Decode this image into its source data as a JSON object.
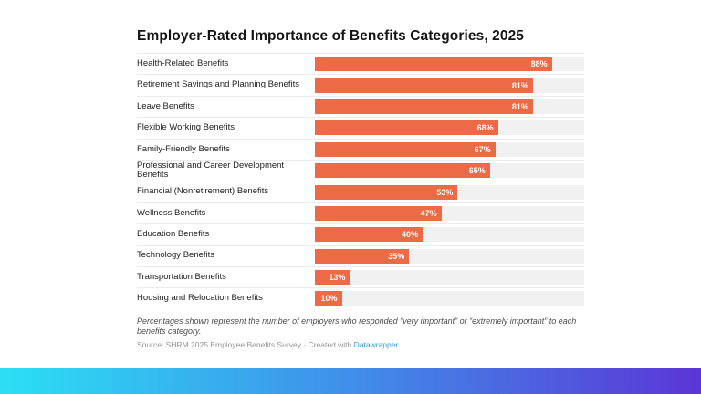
{
  "page": {
    "background": "#ffffff"
  },
  "chart_data": {
    "type": "bar",
    "orientation": "horizontal",
    "title": "Employer-Rated Importance of Benefits Categories, 2025",
    "categories": [
      "Health-Related Benefits",
      "Retirement Savings and Planning Benefits",
      "Leave Benefits",
      "Flexible Working Benefits",
      "Family-Friendly Benefits",
      "Professional and Career Development Benefits",
      "Financial (Nonretirement) Benefits",
      "Wellness Benefits",
      "Education Benefits",
      "Technology Benefits",
      "Transportation Benefits",
      "Housing and Relocation Benefits"
    ],
    "values": [
      88,
      81,
      81,
      68,
      67,
      65,
      53,
      47,
      40,
      35,
      13,
      10
    ],
    "value_suffix": "%",
    "xlim": [
      0,
      100
    ],
    "grid": false,
    "legend": "none",
    "value_label_position": "inside-end",
    "bar_color": "#EC6A45",
    "track_color": "#F1F1F1",
    "value_label_color": "#FFFFFF"
  },
  "notes": {
    "description": "Percentages shown represent the number of employers who responded “very important” or “extremely important” to each benefits category.",
    "source_prefix": "Source: SHRM 2025 Employee Benefits Survey · Created with ",
    "source_link": "Datawrapper"
  },
  "footer_bar": {
    "gradient_start": "#2BDFF4",
    "gradient_mid": "#418BE9",
    "gradient_end": "#5C35D6"
  }
}
